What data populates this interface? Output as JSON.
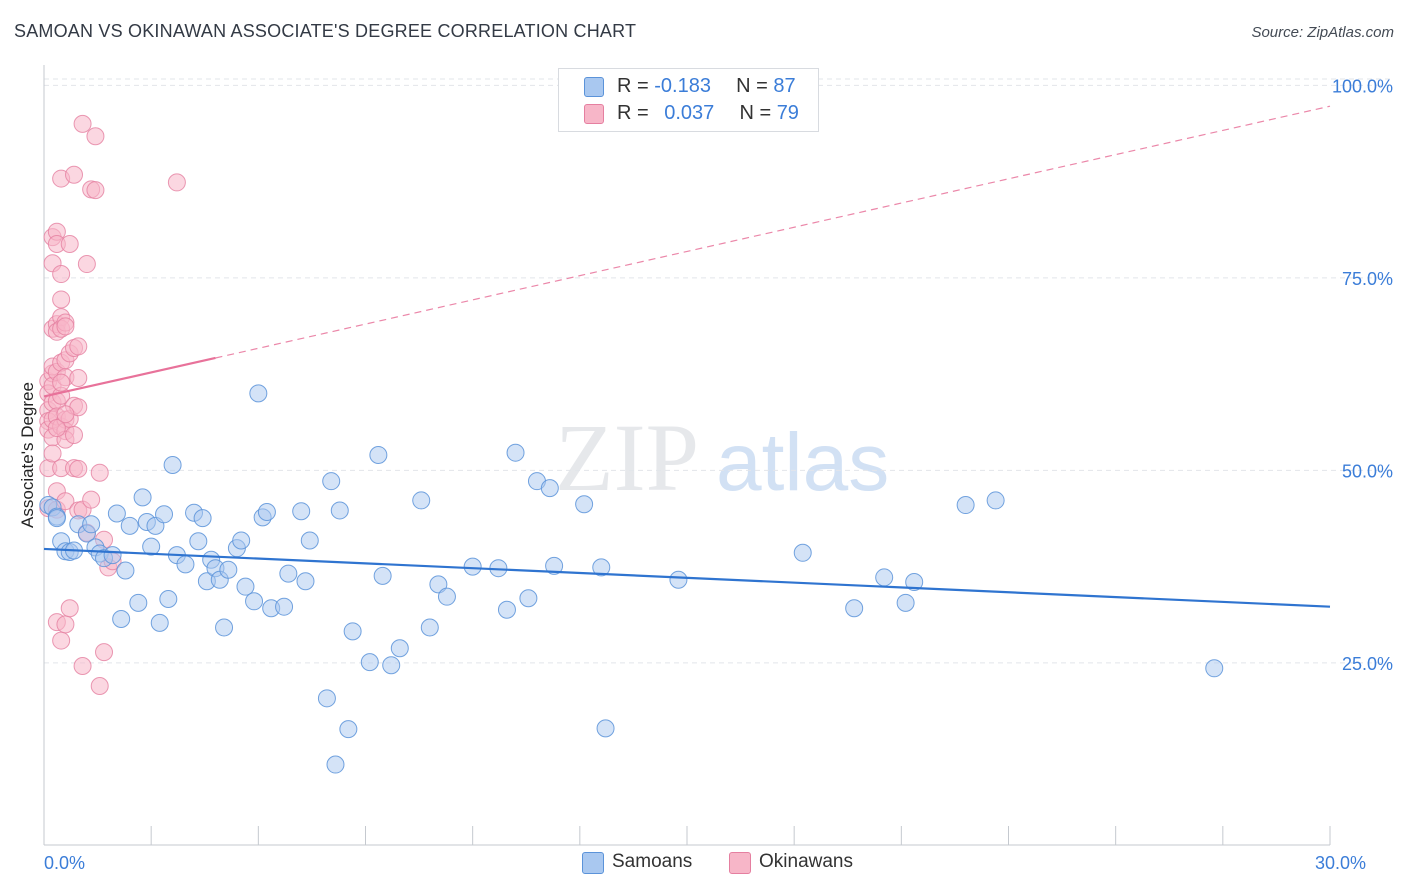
{
  "title": "SAMOAN VS OKINAWAN ASSOCIATE'S DEGREE CORRELATION CHART",
  "source": "Source: ZipAtlas.com",
  "watermark": {
    "part1": "ZIP",
    "part2": "atlas"
  },
  "legend_top": {
    "rows": [
      {
        "r_label": "R = ",
        "r_value": "-0.183",
        "n_label": "N = ",
        "n_value": "87",
        "color": "#a9c8f0"
      },
      {
        "r_label": "R = ",
        "r_value": "0.037",
        "n_label": "N = ",
        "n_value": "79",
        "color": "#f7b6c8"
      }
    ]
  },
  "legend_bottom": {
    "items": [
      {
        "label": "Samoans",
        "color": "#a9c8f0"
      },
      {
        "label": "Okinawans",
        "color": "#f7b6c8"
      }
    ]
  },
  "colors": {
    "samoans_fill": "#a9c8f0",
    "samoans_stroke": "#5b93d9",
    "samoans_line": "#2f74d0",
    "okinawans_fill": "#f7b6c8",
    "okinawans_stroke": "#e57fa0",
    "okinawans_line": "#e8729a",
    "tick_label": "#3b7dd8",
    "grid": "#e2e5ea"
  },
  "chart_data": {
    "type": "scatter",
    "title": "SAMOAN VS OKINAWAN ASSOCIATE'S DEGREE CORRELATION CHART",
    "xlabel": "",
    "ylabel": "Associate's Degree",
    "xlim": [
      0,
      30
    ],
    "ylim": [
      2,
      102
    ],
    "x_tick_labels": [
      {
        "value": 0,
        "label": "0.0%"
      },
      {
        "value": 30,
        "label": "30.0%"
      }
    ],
    "y_tick_labels": [
      {
        "value": 25,
        "label": "25.0%"
      },
      {
        "value": 50,
        "label": "50.0%"
      },
      {
        "value": 75,
        "label": "75.0%"
      },
      {
        "value": 100,
        "label": "100.0%"
      }
    ],
    "grid": true,
    "legend_position": "top-center",
    "series": [
      {
        "name": "Samoans",
        "r": -0.183,
        "n": 87,
        "trend": {
          "x": [
            0,
            30
          ],
          "y": [
            39.8,
            32.3
          ],
          "style": "solid"
        },
        "points": [
          [
            0.1,
            45.5
          ],
          [
            0.2,
            45.2
          ],
          [
            0.3,
            44.0
          ],
          [
            0.3,
            43.8
          ],
          [
            0.4,
            40.8
          ],
          [
            0.5,
            39.5
          ],
          [
            0.6,
            39.4
          ],
          [
            0.7,
            39.6
          ],
          [
            0.8,
            43.0
          ],
          [
            1.0,
            41.8
          ],
          [
            1.1,
            43.0
          ],
          [
            1.2,
            40.0
          ],
          [
            1.3,
            39.2
          ],
          [
            1.4,
            38.6
          ],
          [
            1.6,
            39.0
          ],
          [
            1.7,
            44.4
          ],
          [
            1.8,
            30.7
          ],
          [
            1.9,
            37.0
          ],
          [
            2.0,
            42.8
          ],
          [
            2.2,
            32.8
          ],
          [
            2.3,
            46.5
          ],
          [
            2.4,
            43.3
          ],
          [
            2.5,
            40.1
          ],
          [
            2.6,
            42.8
          ],
          [
            2.7,
            30.2
          ],
          [
            2.8,
            44.3
          ],
          [
            2.9,
            33.3
          ],
          [
            3.0,
            50.7
          ],
          [
            3.1,
            39.0
          ],
          [
            3.3,
            37.8
          ],
          [
            3.5,
            44.5
          ],
          [
            3.6,
            40.8
          ],
          [
            3.7,
            43.8
          ],
          [
            3.8,
            35.6
          ],
          [
            3.9,
            38.4
          ],
          [
            4.0,
            37.3
          ],
          [
            4.1,
            35.8
          ],
          [
            4.2,
            29.6
          ],
          [
            4.3,
            37.1
          ],
          [
            4.5,
            39.9
          ],
          [
            4.6,
            40.9
          ],
          [
            4.7,
            34.9
          ],
          [
            4.9,
            33.0
          ],
          [
            5.0,
            60.0
          ],
          [
            5.1,
            43.9
          ],
          [
            5.2,
            44.6
          ],
          [
            5.3,
            32.1
          ],
          [
            5.6,
            32.3
          ],
          [
            5.7,
            36.6
          ],
          [
            6.0,
            44.7
          ],
          [
            6.1,
            35.6
          ],
          [
            6.2,
            40.9
          ],
          [
            6.6,
            20.4
          ],
          [
            6.7,
            48.6
          ],
          [
            6.8,
            11.8
          ],
          [
            6.9,
            44.8
          ],
          [
            7.1,
            16.4
          ],
          [
            7.2,
            29.1
          ],
          [
            7.6,
            25.1
          ],
          [
            7.8,
            52.0
          ],
          [
            7.9,
            36.3
          ],
          [
            8.1,
            24.7
          ],
          [
            8.3,
            26.9
          ],
          [
            8.8,
            46.1
          ],
          [
            9.0,
            29.6
          ],
          [
            9.2,
            35.2
          ],
          [
            9.4,
            33.6
          ],
          [
            10.0,
            37.5
          ],
          [
            10.6,
            37.3
          ],
          [
            10.8,
            31.9
          ],
          [
            11.0,
            52.3
          ],
          [
            11.3,
            33.4
          ],
          [
            11.5,
            48.6
          ],
          [
            11.8,
            47.7
          ],
          [
            11.9,
            37.6
          ],
          [
            12.6,
            45.6
          ],
          [
            13.0,
            37.4
          ],
          [
            13.1,
            16.5
          ],
          [
            14.8,
            35.8
          ],
          [
            17.7,
            39.3
          ],
          [
            18.9,
            32.1
          ],
          [
            19.6,
            36.1
          ],
          [
            20.1,
            32.8
          ],
          [
            20.3,
            35.5
          ],
          [
            21.5,
            45.5
          ],
          [
            22.2,
            46.1
          ],
          [
            27.3,
            24.3
          ]
        ]
      },
      {
        "name": "Okinawans",
        "r": 0.037,
        "n": 79,
        "trend_solid": {
          "x": [
            0,
            4.0
          ],
          "y": [
            59.6,
            64.6
          ],
          "style": "solid"
        },
        "trend_dashed": {
          "x": [
            4.0,
            30
          ],
          "y": [
            64.6,
            97.3
          ],
          "style": "dashed"
        },
        "points": [
          [
            0.1,
            61.6
          ],
          [
            0.1,
            60.0
          ],
          [
            0.1,
            57.8
          ],
          [
            0.1,
            56.4
          ],
          [
            0.1,
            55.3
          ],
          [
            0.1,
            50.3
          ],
          [
            0.1,
            45.1
          ],
          [
            0.2,
            62.6
          ],
          [
            0.2,
            61.0
          ],
          [
            0.2,
            58.8
          ],
          [
            0.2,
            56.6
          ],
          [
            0.2,
            54.3
          ],
          [
            0.2,
            52.2
          ],
          [
            0.2,
            76.9
          ],
          [
            0.2,
            80.3
          ],
          [
            0.2,
            68.4
          ],
          [
            0.2,
            63.5
          ],
          [
            0.3,
            62.8
          ],
          [
            0.3,
            59.0
          ],
          [
            0.3,
            57.0
          ],
          [
            0.3,
            69.0
          ],
          [
            0.3,
            68.0
          ],
          [
            0.3,
            81.0
          ],
          [
            0.3,
            79.4
          ],
          [
            0.3,
            47.3
          ],
          [
            0.3,
            44.9
          ],
          [
            0.3,
            30.3
          ],
          [
            0.4,
            69.9
          ],
          [
            0.4,
            68.4
          ],
          [
            0.4,
            64.0
          ],
          [
            0.4,
            59.7
          ],
          [
            0.4,
            55.7
          ],
          [
            0.4,
            50.3
          ],
          [
            0.4,
            72.2
          ],
          [
            0.4,
            75.5
          ],
          [
            0.4,
            87.9
          ],
          [
            0.4,
            27.9
          ],
          [
            0.5,
            69.2
          ],
          [
            0.5,
            68.7
          ],
          [
            0.5,
            64.3
          ],
          [
            0.5,
            62.1
          ],
          [
            0.5,
            56.6
          ],
          [
            0.5,
            55.1
          ],
          [
            0.5,
            54.0
          ],
          [
            0.5,
            46.0
          ],
          [
            0.5,
            30.0
          ],
          [
            0.6,
            65.2
          ],
          [
            0.6,
            56.7
          ],
          [
            0.6,
            79.4
          ],
          [
            0.6,
            32.1
          ],
          [
            0.7,
            88.4
          ],
          [
            0.7,
            65.9
          ],
          [
            0.7,
            54.6
          ],
          [
            0.7,
            50.3
          ],
          [
            0.7,
            58.4
          ],
          [
            0.8,
            66.1
          ],
          [
            0.8,
            62.0
          ],
          [
            0.8,
            50.2
          ],
          [
            0.8,
            44.8
          ],
          [
            0.8,
            58.2
          ],
          [
            0.9,
            95.0
          ],
          [
            0.9,
            24.6
          ],
          [
            0.9,
            44.9
          ],
          [
            1.0,
            76.8
          ],
          [
            1.0,
            41.9
          ],
          [
            1.1,
            86.5
          ],
          [
            1.1,
            46.2
          ],
          [
            1.2,
            86.4
          ],
          [
            1.2,
            93.4
          ],
          [
            1.3,
            49.7
          ],
          [
            1.3,
            22.0
          ],
          [
            1.4,
            26.4
          ],
          [
            1.5,
            37.4
          ],
          [
            1.6,
            38.2
          ],
          [
            1.4,
            41.0
          ],
          [
            3.1,
            87.4
          ],
          [
            0.3,
            55.5
          ],
          [
            0.5,
            57.3
          ],
          [
            0.4,
            61.4
          ]
        ]
      }
    ]
  }
}
